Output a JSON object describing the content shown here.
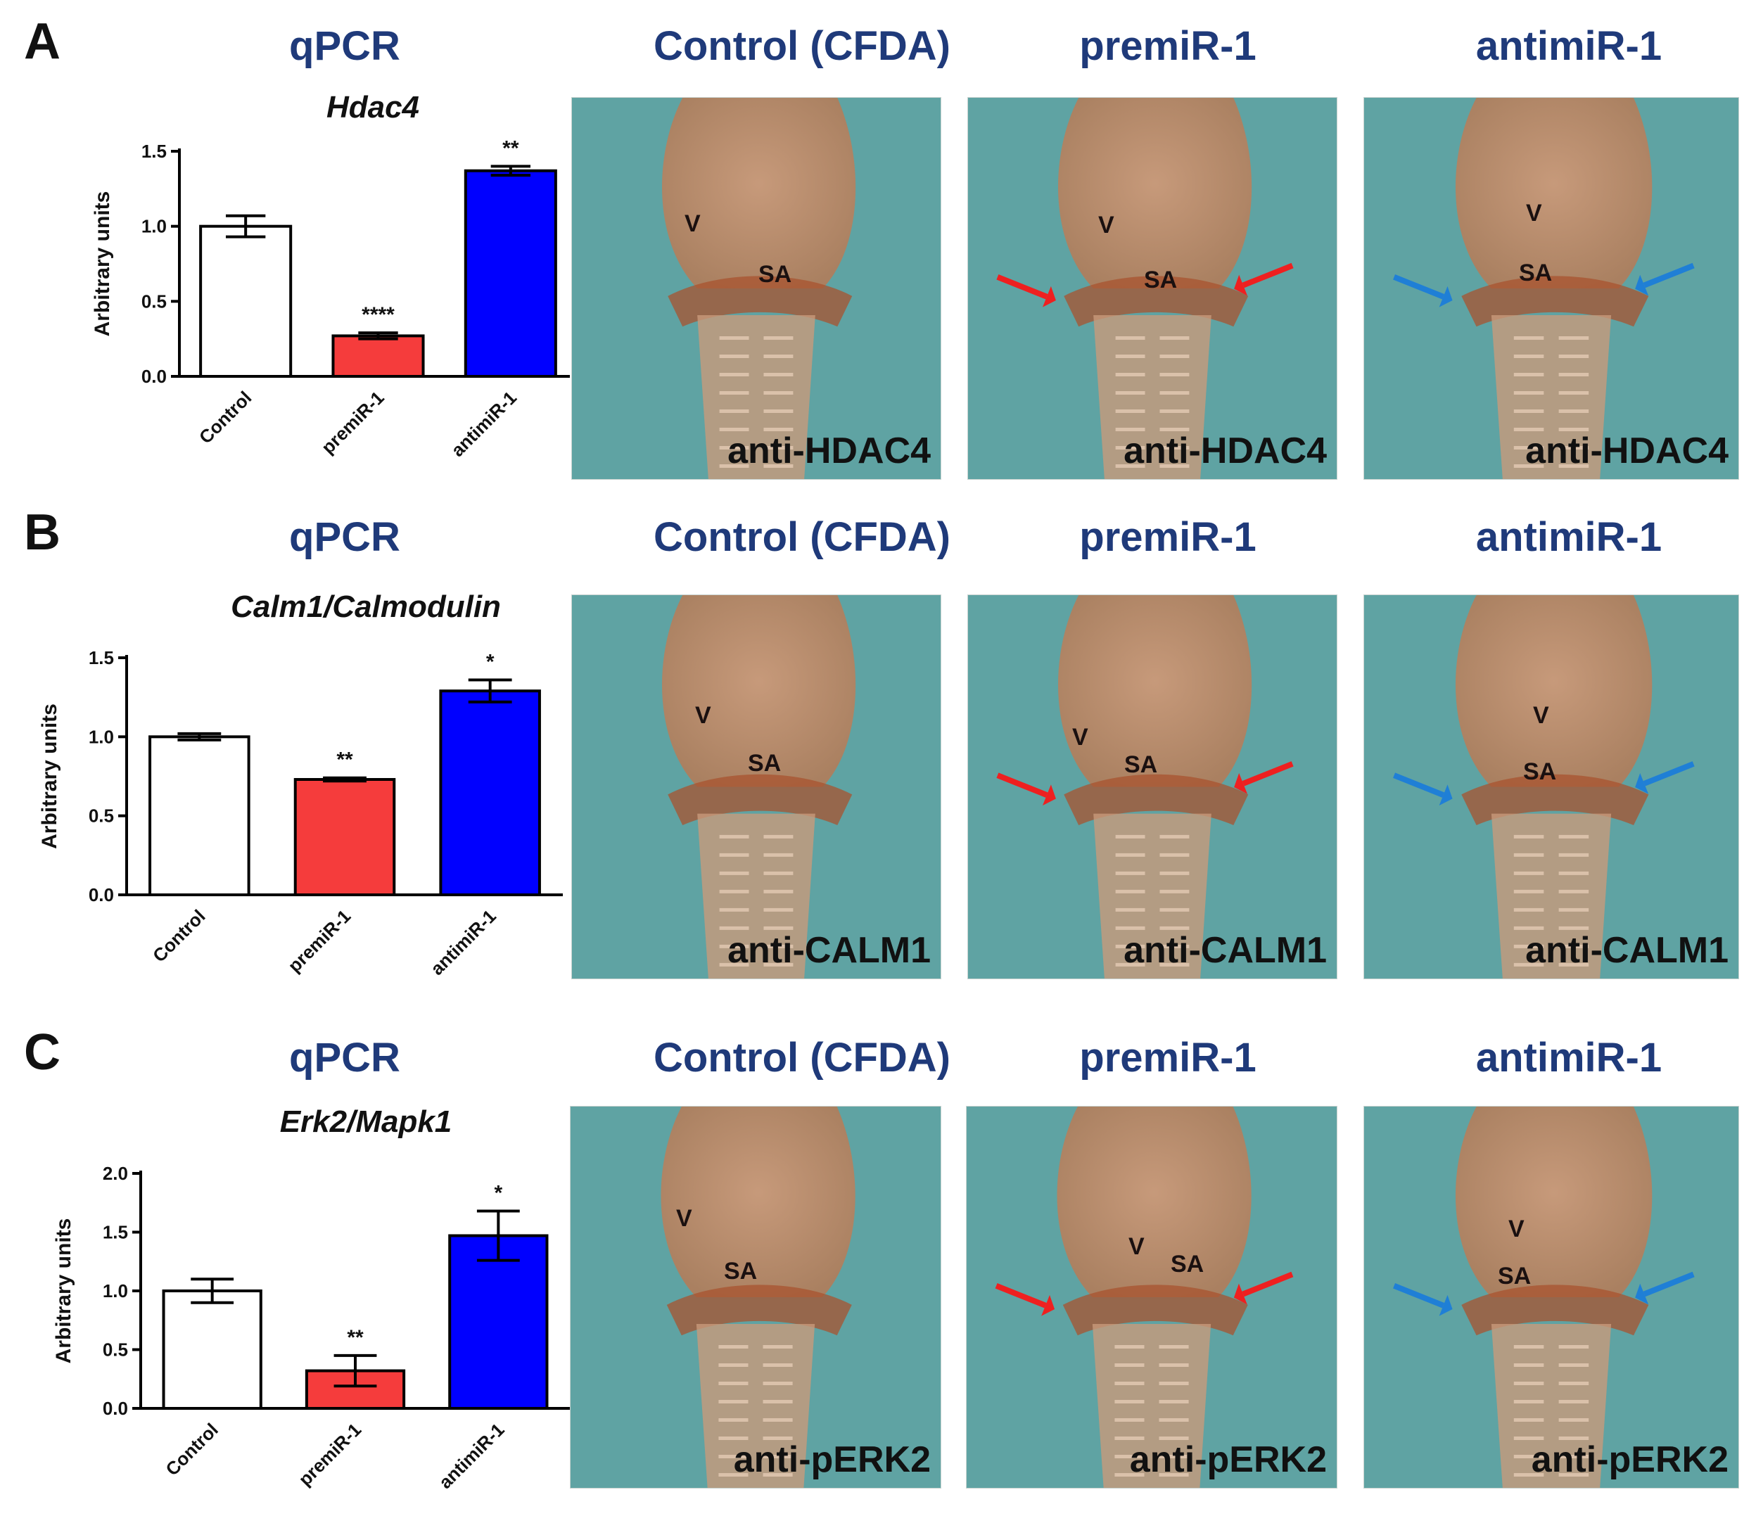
{
  "colors": {
    "title_blue": "#1f3a7a",
    "bar_control": "#ffffff",
    "bar_premir": "#f53c3c",
    "bar_antimir": "#0000ff",
    "arrow_red": "#ee2020",
    "arrow_blue": "#1f7fd6",
    "bg_teal": "#5fa3a3",
    "tissue": "#c98a62"
  },
  "panels": [
    {
      "letter": "A",
      "qpcr_title": "qPCR",
      "gene": "Hdac4",
      "column_titles": [
        "Control (CFDA)",
        "premiR-1",
        "antimiR-1"
      ],
      "photo_labels": [
        "anti-HDAC4",
        "anti-HDAC4",
        "anti-HDAC4"
      ],
      "markers": {
        "v": "V",
        "sa": "SA"
      }
    },
    {
      "letter": "B",
      "qpcr_title": "qPCR",
      "gene": "Calm1/Calmodulin",
      "column_titles": [
        "Control (CFDA)",
        "premiR-1",
        "antimiR-1"
      ],
      "photo_labels": [
        "anti-CALM1",
        "anti-CALM1",
        "anti-CALM1"
      ],
      "markers": {
        "v": "V",
        "sa": "SA"
      }
    },
    {
      "letter": "C",
      "qpcr_title": "qPCR",
      "gene": "Erk2/Mapk1",
      "column_titles": [
        "Control (CFDA)",
        "premiR-1",
        "antimiR-1"
      ],
      "photo_labels": [
        "anti-pERK2",
        "anti-pERK2",
        "anti-pERK2"
      ],
      "markers": {
        "v": "V",
        "sa": "SA"
      }
    }
  ],
  "chart_data": [
    {
      "type": "bar",
      "title": "Hdac4",
      "ylabel": "Arbitrary units",
      "categories": [
        "Control",
        "premiR-1",
        "antimiR-1"
      ],
      "values": [
        1.0,
        0.27,
        1.37
      ],
      "errors": [
        0.07,
        0.02,
        0.03
      ],
      "significance": [
        "",
        "****",
        "**"
      ],
      "ylim": [
        0,
        1.5
      ],
      "yticks": [
        "0.0",
        "0.5",
        "1.0",
        "1.5"
      ]
    },
    {
      "type": "bar",
      "title": "Calm1/Calmodulin",
      "ylabel": "Arbitrary units",
      "categories": [
        "Control",
        "premiR-1",
        "antimiR-1"
      ],
      "values": [
        1.0,
        0.73,
        1.29
      ],
      "errors": [
        0.02,
        0.01,
        0.07
      ],
      "significance": [
        "",
        "**",
        "*"
      ],
      "ylim": [
        0,
        1.5
      ],
      "yticks": [
        "0.0",
        "0.5",
        "1.0",
        "1.5"
      ]
    },
    {
      "type": "bar",
      "title": "Erk2/Mapk1",
      "ylabel": "Arbitrary units",
      "categories": [
        "Control",
        "premiR-1",
        "antimiR-1"
      ],
      "values": [
        1.0,
        0.32,
        1.47
      ],
      "errors": [
        0.1,
        0.13,
        0.21
      ],
      "significance": [
        "",
        "**",
        "*"
      ],
      "ylim": [
        0,
        2.0
      ],
      "yticks": [
        "0.0",
        "0.5",
        "1.0",
        "1.5",
        "2.0"
      ]
    }
  ]
}
